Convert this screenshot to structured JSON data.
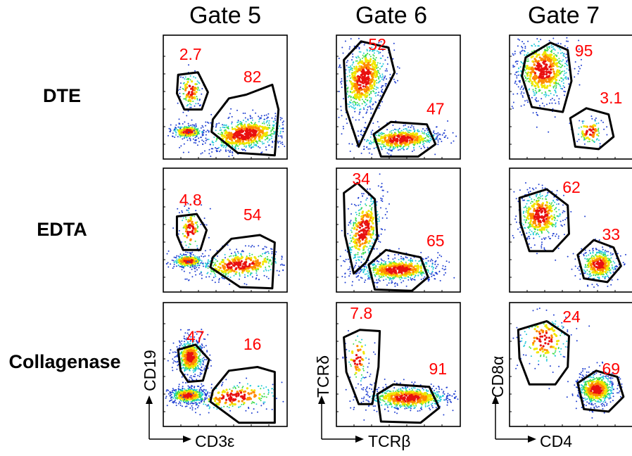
{
  "chart_data": {
    "type": "scatter",
    "columns": [
      "Gate 5",
      "Gate 6",
      "Gate 7"
    ],
    "rows": [
      "DTE",
      "EDTA",
      "Collagenase"
    ],
    "axes": {
      "gate5": {
        "x": "CD3ε",
        "y": "CD19"
      },
      "gate6": {
        "x": "TCRβ",
        "y": "TCRδ"
      },
      "gate7": {
        "x": "CD4",
        "y": "CD8α"
      }
    },
    "percentages": {
      "DTE": {
        "gate5": [
          "2.7",
          "82"
        ],
        "gate6": [
          "52",
          "47"
        ],
        "gate7": [
          "95",
          "3.1"
        ]
      },
      "EDTA": {
        "gate5": [
          "4.8",
          "54"
        ],
        "gate6": [
          "34",
          "65"
        ],
        "gate7": [
          "62",
          "33"
        ]
      },
      "Collagenase": {
        "gate5": [
          "47",
          "16"
        ],
        "gate6": [
          "7.8",
          "91"
        ],
        "gate7": [
          "24",
          "69"
        ]
      }
    },
    "colors": {
      "percent_text": "#ff0000",
      "gate_outline": "#000000",
      "density_low": "#1f3fd1",
      "density_high": "#e81010"
    }
  }
}
